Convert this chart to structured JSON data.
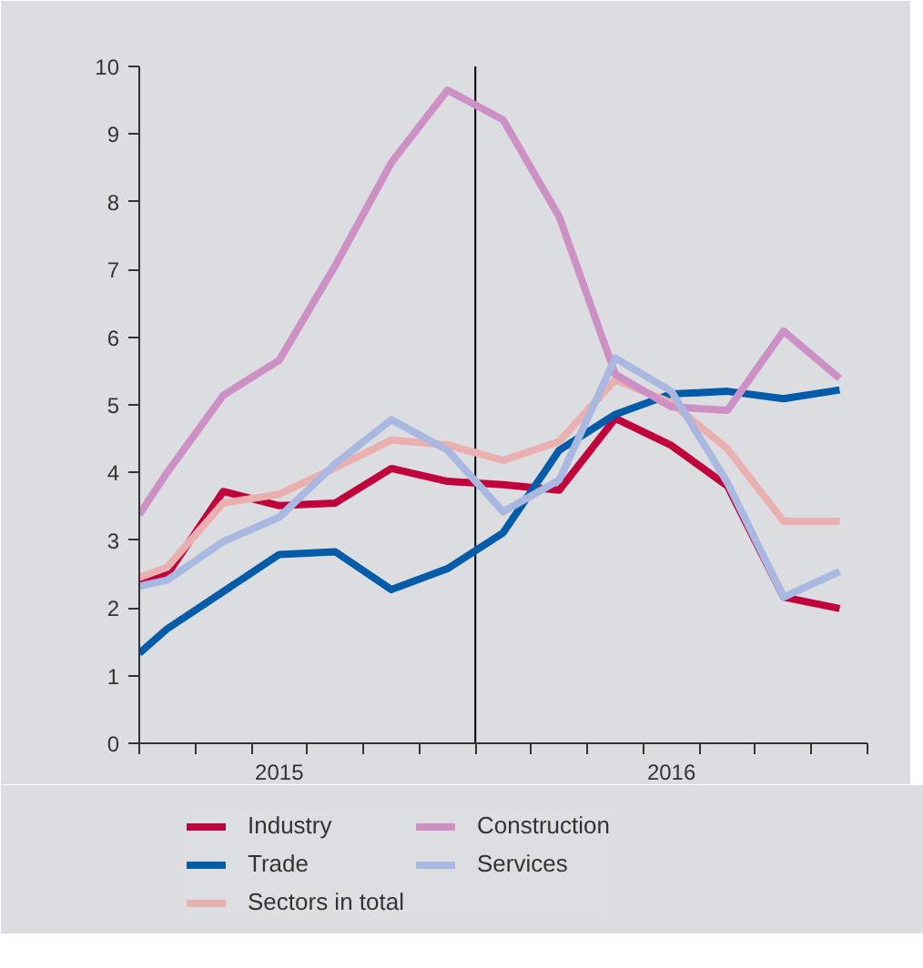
{
  "chart_data": {
    "type": "line",
    "x": [
      2014.643,
      2014.714,
      2014.857,
      2015,
      2015.143,
      2015.286,
      2015.429,
      2015.571,
      2015.714,
      2015.857,
      2016,
      2016.143,
      2016.286,
      2016.429
    ],
    "series": [
      {
        "name": "Industry",
        "color": "#c0003c",
        "values": [
          2.38,
          2.49,
          3.72,
          3.51,
          3.55,
          4.06,
          3.87,
          3.82,
          3.74,
          4.8,
          4.4,
          3.8,
          2.16,
          1.99
        ]
      },
      {
        "name": "Trade",
        "color": "#005ca8",
        "values": [
          1.33,
          1.69,
          2.24,
          2.79,
          2.83,
          2.27,
          2.58,
          3.11,
          4.33,
          4.86,
          5.16,
          5.2,
          5.09,
          5.22
        ]
      },
      {
        "name": "Sectors in total",
        "color": "#eab0b0",
        "values": [
          2.45,
          2.6,
          3.55,
          3.68,
          4.07,
          4.48,
          4.41,
          4.18,
          4.46,
          5.37,
          5.03,
          4.35,
          3.28,
          3.28
        ]
      },
      {
        "name": "Construction",
        "color": "#cc90c4",
        "values": [
          3.38,
          4.0,
          5.14,
          5.66,
          7.06,
          8.58,
          9.65,
          9.21,
          7.78,
          5.45,
          4.97,
          4.92,
          6.09,
          5.39
        ]
      },
      {
        "name": "Services",
        "color": "#a8b8e0",
        "values": [
          2.32,
          2.41,
          2.98,
          3.34,
          4.13,
          4.78,
          4.33,
          3.42,
          3.89,
          5.69,
          5.2,
          3.85,
          2.16,
          2.54
        ]
      }
    ],
    "xlim": [
      2014.643,
      2016.5
    ],
    "xticks": [
      {
        "value": 2014.643,
        "label": null
      },
      {
        "value": 2014.786,
        "label": null
      },
      {
        "value": 2014.929,
        "label": null
      },
      {
        "value": 2015,
        "label": "2015"
      },
      {
        "value": 2015.071,
        "label": null
      },
      {
        "value": 2015.214,
        "label": null
      },
      {
        "value": 2015.357,
        "label": null
      },
      {
        "value": 2015.5,
        "label": null
      },
      {
        "value": 2015.643,
        "label": null
      },
      {
        "value": 2015.786,
        "label": null
      },
      {
        "value": 2015.929,
        "label": null
      },
      {
        "value": 2016,
        "label": "2016"
      },
      {
        "value": 2016.071,
        "label": null
      },
      {
        "value": 2016.214,
        "label": null
      },
      {
        "value": 2016.357,
        "label": null
      },
      {
        "value": 2016.5,
        "label": null
      }
    ],
    "ylim": [
      0,
      10
    ],
    "yticks": [
      0,
      1,
      2,
      3,
      4,
      5,
      6,
      7,
      8,
      9,
      10
    ],
    "ref_lines": [
      {
        "axis": "x",
        "value": 2015.5,
        "color": "#000000"
      }
    ],
    "grid": false,
    "legend": "bottom",
    "marker": "none",
    "line_style": "solid"
  }
}
